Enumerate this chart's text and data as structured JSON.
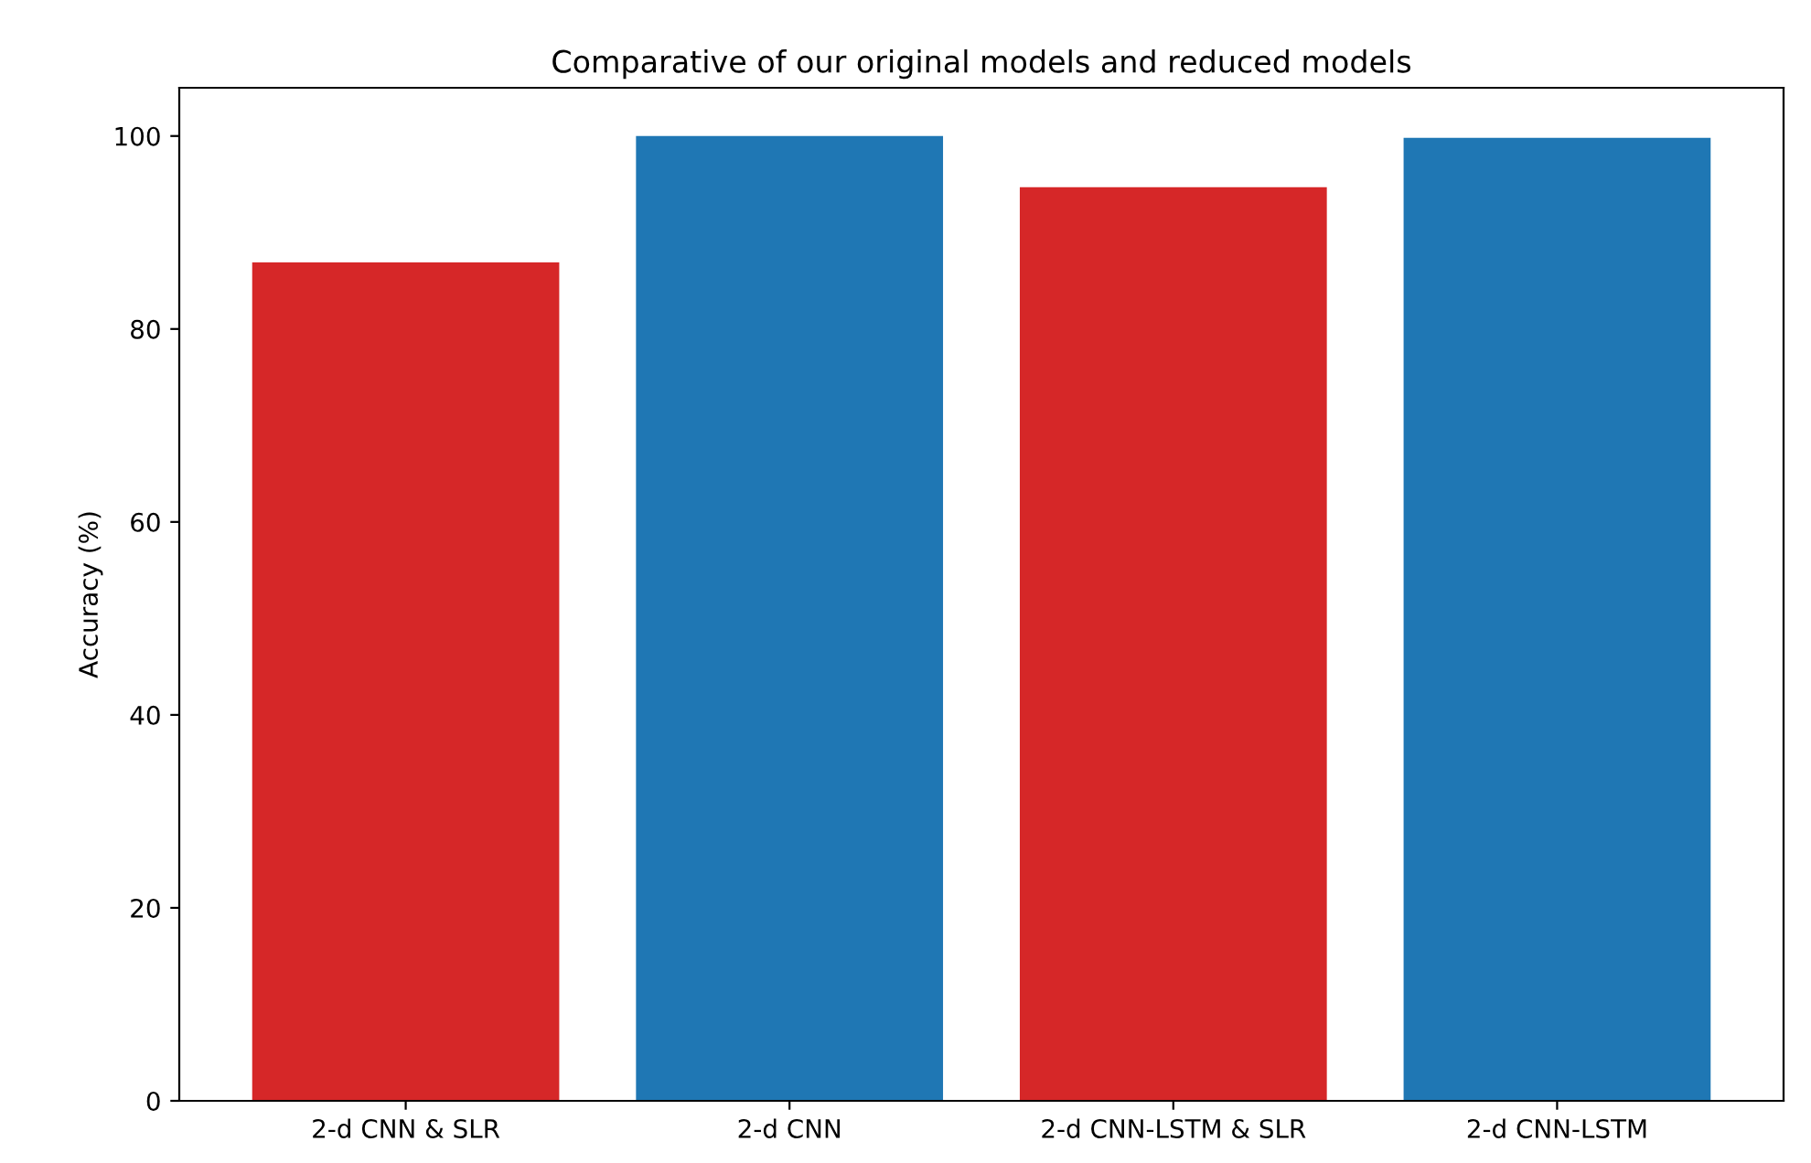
{
  "chart_data": {
    "type": "bar",
    "title": "Comparative of our original models and reduced models",
    "ylabel": "Accuracy (%)",
    "categories": [
      "2-d CNN & SLR",
      "2-d CNN",
      "2-d CNN-LSTM & SLR",
      "2-d CNN-LSTM"
    ],
    "values": [
      86.9,
      100,
      94.7,
      99.8
    ],
    "colors": [
      "#d62728",
      "#1f77b4",
      "#d62728",
      "#1f77b4"
    ],
    "ylim": [
      0,
      105
    ],
    "yticks": [
      0,
      20,
      40,
      60,
      80,
      100
    ],
    "grid": false
  }
}
